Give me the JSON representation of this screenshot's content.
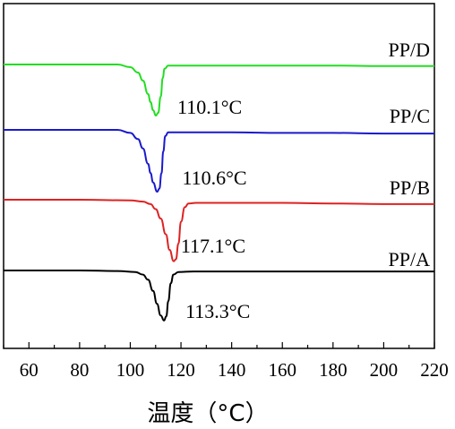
{
  "chart_data": {
    "type": "line",
    "title": "",
    "xlabel": "温度（°C）",
    "ylabel": "",
    "xlim": [
      50,
      220
    ],
    "xticks": [
      60,
      80,
      100,
      120,
      140,
      160,
      180,
      200,
      220
    ],
    "grid": false,
    "legend": "none",
    "series": [
      {
        "name": "PP/D",
        "color": "#22dd22",
        "peak_x": 110.1,
        "peak_label": "110.1°C",
        "x": [
          50,
          60,
          80,
          95,
          100,
          103,
          105,
          107,
          108,
          109,
          110.1,
          111,
          112,
          112.8,
          113.5,
          115,
          120,
          140,
          160,
          180,
          200,
          220
        ],
        "y": [
          0.0,
          0.0,
          0.0,
          0.0,
          -0.05,
          -0.15,
          -0.3,
          -0.55,
          -0.7,
          -0.85,
          -0.95,
          -0.9,
          -0.6,
          -0.25,
          -0.08,
          -0.02,
          -0.02,
          -0.02,
          -0.02,
          -0.02,
          -0.03,
          -0.03
        ]
      },
      {
        "name": "PP/C",
        "color": "#1a1acc",
        "peak_x": 110.6,
        "peak_label": "110.6°C",
        "x": [
          50,
          60,
          80,
          95,
          100,
          103,
          105,
          107,
          108,
          109,
          110.6,
          111.5,
          112.3,
          113,
          113.8,
          115,
          120,
          140,
          160,
          180,
          200,
          220
        ],
        "y": [
          0.0,
          0.0,
          0.0,
          0.0,
          -0.05,
          -0.15,
          -0.3,
          -0.55,
          -0.7,
          -0.85,
          -1.0,
          -0.95,
          -0.7,
          -0.35,
          -0.1,
          -0.04,
          -0.04,
          -0.04,
          -0.05,
          -0.05,
          -0.06,
          -0.06
        ]
      },
      {
        "name": "PP/B",
        "color": "#dd2222",
        "peak_x": 117.1,
        "peak_label": "117.1°C",
        "x": [
          50,
          60,
          80,
          100,
          105,
          108,
          110,
          112,
          114,
          115.5,
          117.1,
          118,
          119,
          120,
          121.5,
          123,
          126,
          140,
          160,
          180,
          200,
          220
        ],
        "y": [
          0.0,
          0.0,
          0.0,
          -0.01,
          -0.03,
          -0.07,
          -0.15,
          -0.3,
          -0.55,
          -0.8,
          -0.98,
          -0.95,
          -0.7,
          -0.35,
          -0.12,
          -0.06,
          -0.05,
          -0.05,
          -0.05,
          -0.06,
          -0.07,
          -0.07
        ]
      },
      {
        "name": "PP/A",
        "color": "#000000",
        "peak_x": 113.3,
        "peak_label": "113.3°C",
        "x": [
          50,
          60,
          80,
          95,
          102,
          105,
          107,
          109,
          110.5,
          112,
          113.3,
          114.2,
          115,
          116,
          117,
          119,
          125,
          140,
          160,
          180,
          200,
          220
        ],
        "y": [
          0.0,
          0.0,
          0.0,
          -0.01,
          -0.03,
          -0.08,
          -0.18,
          -0.4,
          -0.65,
          -0.88,
          -0.98,
          -0.9,
          -0.6,
          -0.25,
          -0.08,
          -0.03,
          -0.02,
          -0.02,
          -0.02,
          -0.02,
          -0.02,
          -0.02
        ]
      }
    ]
  }
}
